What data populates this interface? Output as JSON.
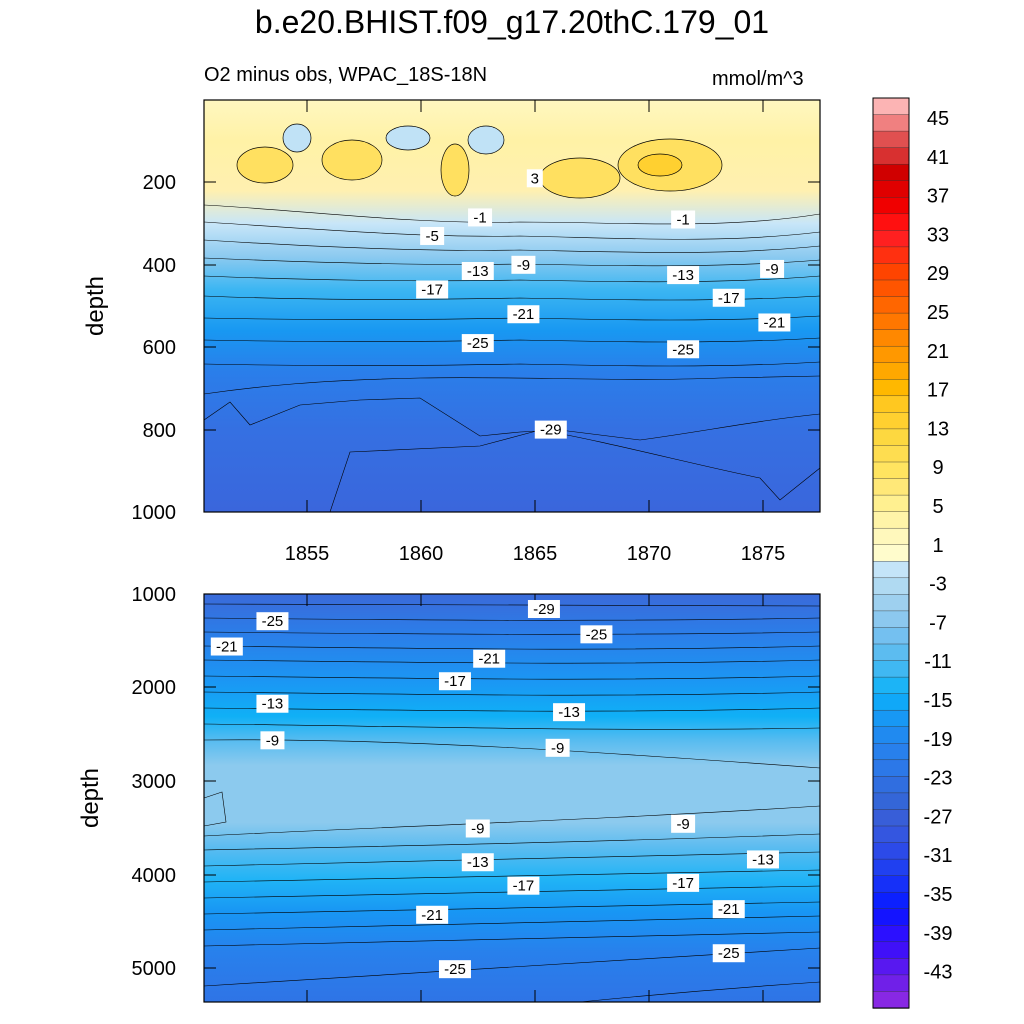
{
  "title": "b.e20.BHIST.f09_g17.20thC.179_01",
  "subtitle_left": "O2 minus obs, WPAC_18S-18N",
  "units": "mmol/m^3",
  "chart_data": [
    {
      "type": "contour",
      "panel": "upper",
      "ylabel": "depth",
      "xlabel": "",
      "x_range": [
        1850.5,
        1877.5
      ],
      "y_range": [
        0,
        1000
      ],
      "y_inverted": true,
      "x_ticks": [
        1855,
        1860,
        1865,
        1870,
        1875
      ],
      "x_tick_labels": [
        "1855",
        "1860",
        "1865",
        "1870",
        "1875"
      ],
      "y_ticks": [
        200,
        400,
        600,
        800,
        1000
      ],
      "y_tick_labels": [
        "200",
        "400",
        "600",
        "800",
        "1000"
      ],
      "contour_labels": [
        {
          "text": "3",
          "year": 1865.0,
          "depth": 190
        },
        {
          "text": "-1",
          "year": 1862.6,
          "depth": 285
        },
        {
          "text": "-1",
          "year": 1871.5,
          "depth": 290
        },
        {
          "text": "-5",
          "year": 1860.5,
          "depth": 330
        },
        {
          "text": "-9",
          "year": 1864.5,
          "depth": 400
        },
        {
          "text": "-9",
          "year": 1875.4,
          "depth": 410
        },
        {
          "text": "-13",
          "year": 1862.5,
          "depth": 415
        },
        {
          "text": "-13",
          "year": 1871.5,
          "depth": 425
        },
        {
          "text": "-17",
          "year": 1860.5,
          "depth": 460
        },
        {
          "text": "-17",
          "year": 1873.5,
          "depth": 480
        },
        {
          "text": "-21",
          "year": 1864.5,
          "depth": 520
        },
        {
          "text": "-21",
          "year": 1875.5,
          "depth": 540
        },
        {
          "text": "-25",
          "year": 1862.5,
          "depth": 590
        },
        {
          "text": "-25",
          "year": 1871.5,
          "depth": 605
        },
        {
          "text": "-29",
          "year": 1865.7,
          "depth": 800
        }
      ]
    },
    {
      "type": "contour",
      "panel": "lower",
      "ylabel": "depth",
      "xlabel": "",
      "x_range": [
        1850.5,
        1877.5
      ],
      "y_range": [
        1000,
        5350
      ],
      "y_inverted": true,
      "y_ticks": [
        1000,
        2000,
        3000,
        4000,
        5000
      ],
      "y_tick_labels": [
        "1000",
        "2000",
        "3000",
        "4000",
        "5000"
      ],
      "contour_labels": [
        {
          "text": "-29",
          "year": 1865.4,
          "depth": 1160
        },
        {
          "text": "-25",
          "year": 1853.5,
          "depth": 1290
        },
        {
          "text": "-25",
          "year": 1867.7,
          "depth": 1430
        },
        {
          "text": "-21",
          "year": 1851.5,
          "depth": 1560
        },
        {
          "text": "-21",
          "year": 1863.0,
          "depth": 1690
        },
        {
          "text": "-17",
          "year": 1861.5,
          "depth": 1930
        },
        {
          "text": "-13",
          "year": 1853.5,
          "depth": 2170
        },
        {
          "text": "-13",
          "year": 1866.5,
          "depth": 2260
        },
        {
          "text": "-9",
          "year": 1853.5,
          "depth": 2560
        },
        {
          "text": "-9",
          "year": 1866.0,
          "depth": 2640
        },
        {
          "text": "-9",
          "year": 1862.5,
          "depth": 3500
        },
        {
          "text": "-9",
          "year": 1871.5,
          "depth": 3450
        },
        {
          "text": "-13",
          "year": 1862.5,
          "depth": 3860
        },
        {
          "text": "-13",
          "year": 1875.0,
          "depth": 3830
        },
        {
          "text": "-17",
          "year": 1864.5,
          "depth": 4110
        },
        {
          "text": "-17",
          "year": 1871.5,
          "depth": 4080
        },
        {
          "text": "-21",
          "year": 1860.5,
          "depth": 4420
        },
        {
          "text": "-21",
          "year": 1873.5,
          "depth": 4360
        },
        {
          "text": "-25",
          "year": 1861.5,
          "depth": 5000
        },
        {
          "text": "-25",
          "year": 1873.5,
          "depth": 4830
        }
      ]
    },
    {
      "type": "colorbar",
      "levels": [
        -43,
        -41,
        -39,
        -37,
        -35,
        -33,
        -31,
        -29,
        -27,
        -25,
        -23,
        -21,
        -19,
        -17,
        -15,
        -13,
        -11,
        -9,
        -7,
        -5,
        -3,
        -1,
        1,
        3,
        5,
        7,
        9,
        11,
        13,
        15,
        17,
        19,
        21,
        23,
        25,
        27,
        29,
        31,
        33,
        35,
        37,
        39,
        41,
        43,
        45
      ],
      "tick_labels": [
        "45",
        "41",
        "37",
        "33",
        "29",
        "25",
        "21",
        "17",
        "13",
        "9",
        "5",
        "1",
        "-3",
        "-7",
        "-11",
        "-15",
        "-19",
        "-23",
        "-27",
        "-31",
        "-35",
        "-39",
        "-43"
      ],
      "colors_top_to_bottom": [
        "#fcb4b4",
        "#f08080",
        "#e05050",
        "#d83030",
        "#d00000",
        "#e00000",
        "#f00000",
        "#ff1010",
        "#ff2020",
        "#ff3010",
        "#ff4400",
        "#ff5500",
        "#ff6600",
        "#ff7700",
        "#ff8800",
        "#ff9800",
        "#ffa800",
        "#ffb800",
        "#ffc820",
        "#ffd030",
        "#fdd840",
        "#fedd50",
        "#ffe460",
        "#ffe878",
        "#fff090",
        "#fff4a8",
        "#fff8bc",
        "#fffccc",
        "#c4e4f8",
        "#b0daf2",
        "#9ed0ef",
        "#8cc8ef",
        "#74c0f0",
        "#5cbcf0",
        "#40b8f2",
        "#1cb4f6",
        "#10a8f8",
        "#1898f4",
        "#208af0",
        "#2880ec",
        "#2c78e8",
        "#306ee0",
        "#3466d8",
        "#385ed8",
        "#3456e0",
        "#2c4ae8",
        "#2040f0",
        "#1630f8",
        "#0c20ff",
        "#1414ff",
        "#2c10ff",
        "#4010f8",
        "#5818f0",
        "#7020e8",
        "#8828e4"
      ]
    }
  ]
}
